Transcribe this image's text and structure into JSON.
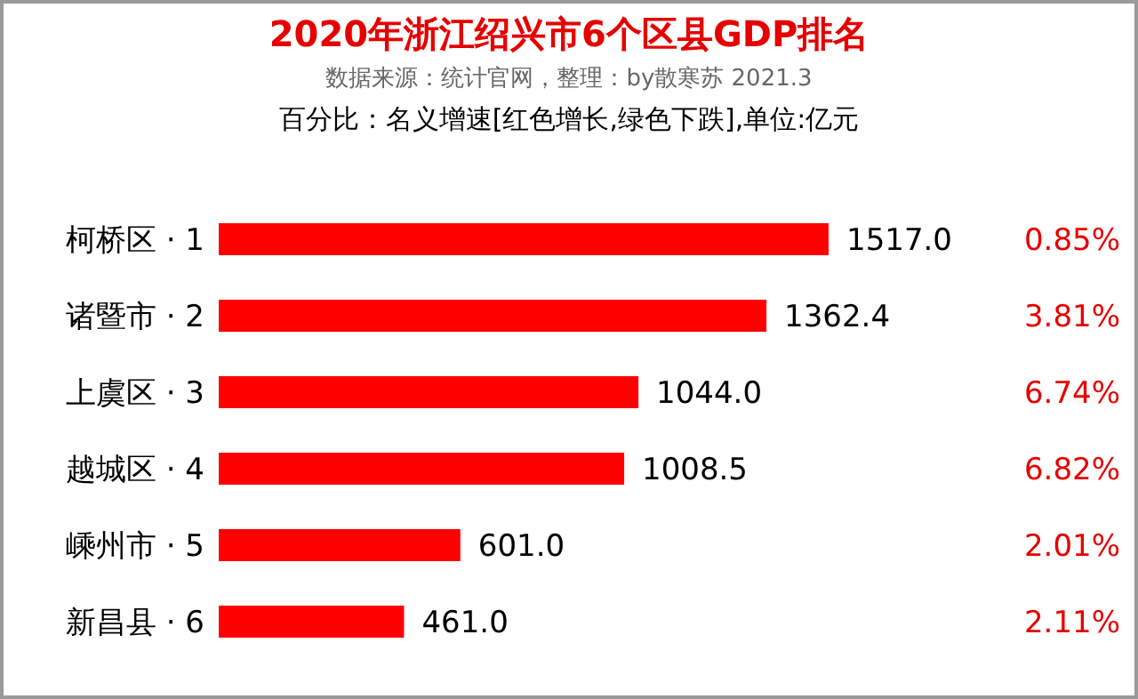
{
  "chart_data": {
    "type": "bar",
    "orientation": "horizontal",
    "title": "2020年浙江绍兴市6个区县GDP排名",
    "subtitle": "数据来源：统计官网，整理：by散寒苏  2021.3",
    "categories": [
      "柯桥区 · 1",
      "诸暨市 · 2",
      "上虞区 · 3",
      "越城区 · 4",
      "嵊州市 · 5",
      "新昌县 · 6"
    ],
    "values": [
      1517.0,
      1362.4,
      1044.0,
      1008.5,
      601.0,
      461.0
    ],
    "value_labels": [
      "1517.0",
      "1362.4",
      "1044.0",
      "1008.5",
      "601.0",
      "461.0"
    ],
    "color": "#ff0000",
    "annotations": [
      "百分比：名义增速[红色增长,绿色下跌],单位:亿元",
      "0.85%",
      "3.81%",
      "6.74%",
      "6.82%",
      "2.01%",
      "2.11%"
    ]
  }
}
